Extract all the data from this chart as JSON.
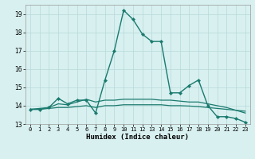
{
  "xlabel": "Humidex (Indice chaleur)",
  "bg_color": "#d8f0f0",
  "grid_color": "#b8d8d8",
  "line_color": "#1a7a6e",
  "xlim": [
    -0.5,
    23.5
  ],
  "ylim": [
    13.0,
    19.5
  ],
  "yticks": [
    13,
    14,
    15,
    16,
    17,
    18,
    19
  ],
  "xticks": [
    0,
    1,
    2,
    3,
    4,
    5,
    6,
    7,
    8,
    9,
    10,
    11,
    12,
    13,
    14,
    15,
    16,
    17,
    18,
    19,
    20,
    21,
    22,
    23
  ],
  "series": [
    {
      "x": [
        0,
        1,
        2,
        3,
        4,
        5,
        6,
        7,
        8,
        9,
        10,
        11,
        12,
        13,
        14,
        15,
        16,
        17,
        18,
        19,
        20,
        21,
        22,
        23
      ],
      "y": [
        13.8,
        13.8,
        13.9,
        14.4,
        14.1,
        14.3,
        14.3,
        13.6,
        15.4,
        17.0,
        19.2,
        18.7,
        17.9,
        17.5,
        17.5,
        14.7,
        14.7,
        15.1,
        15.4,
        14.0,
        13.4,
        13.4,
        13.3,
        13.1
      ],
      "linestyle": "-",
      "marker": true,
      "linewidth": 1.0
    },
    {
      "x": [
        0,
        1,
        2,
        3,
        4,
        5,
        6,
        7,
        8,
        9,
        10,
        11,
        12,
        13,
        14,
        15,
        16,
        17,
        18,
        19,
        20,
        21,
        22,
        23
      ],
      "y": [
        13.8,
        13.8,
        13.85,
        13.9,
        13.9,
        13.95,
        14.0,
        13.9,
        14.0,
        14.0,
        14.05,
        14.05,
        14.05,
        14.05,
        14.05,
        14.0,
        14.0,
        13.98,
        13.95,
        13.9,
        13.85,
        13.8,
        13.75,
        13.7
      ],
      "linestyle": "-",
      "marker": false,
      "linewidth": 0.9
    },
    {
      "x": [
        0,
        1,
        2,
        3,
        4,
        5,
        6,
        7,
        8,
        9,
        10,
        11,
        12,
        13,
        14,
        15,
        16,
        17,
        18,
        19,
        20,
        21,
        22,
        23
      ],
      "y": [
        13.8,
        13.85,
        13.9,
        14.1,
        14.05,
        14.2,
        14.35,
        14.2,
        14.3,
        14.3,
        14.35,
        14.35,
        14.35,
        14.35,
        14.3,
        14.3,
        14.25,
        14.2,
        14.2,
        14.1,
        14.0,
        13.9,
        13.75,
        13.6
      ],
      "linestyle": "-",
      "marker": false,
      "linewidth": 0.9
    }
  ]
}
